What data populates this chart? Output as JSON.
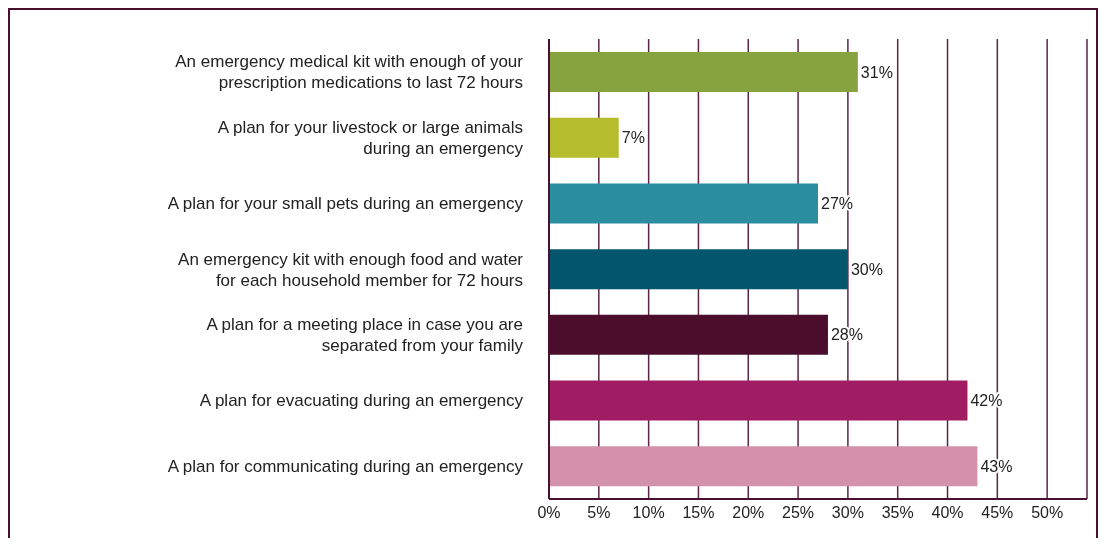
{
  "chart_data": {
    "type": "bar",
    "orientation": "horizontal",
    "categories": [
      "An emergency medical kit with enough of your prescription medications to last 72 hours",
      "A plan for your livestock or large animals during an emergency",
      "A plan for your small pets during an emergency",
      "An emergency kit with enough food and water for each household member for 72 hours",
      "A plan for a meeting place in case you are separated from your family",
      "A plan for evacuating during an emergency",
      "A plan for communicating during an emergency"
    ],
    "values": [
      31,
      7,
      27,
      30,
      28,
      42,
      43
    ],
    "colors": [
      "#86a33f",
      "#b5bd2c",
      "#2a8e9f",
      "#03566b",
      "#4a0e2c",
      "#a11d63",
      "#d491aa"
    ],
    "value_labels": [
      "31%",
      "7%",
      "27%",
      "30%",
      "28%",
      "42%",
      "43%"
    ],
    "xlim": [
      0,
      54
    ],
    "xticks": [
      {
        "value": 0,
        "label": "0%"
      },
      {
        "value": 5,
        "label": "5%"
      },
      {
        "value": 10,
        "label": "10%"
      },
      {
        "value": 15,
        "label": "15%"
      },
      {
        "value": 20,
        "label": "20%"
      },
      {
        "value": 25,
        "label": "25%"
      },
      {
        "value": 30,
        "label": "30%"
      },
      {
        "value": 35,
        "label": "35%"
      },
      {
        "value": 40,
        "label": "40%"
      },
      {
        "value": 45,
        "label": "45%"
      },
      {
        "value": 50,
        "label": "50%"
      }
    ],
    "grid": "x"
  }
}
